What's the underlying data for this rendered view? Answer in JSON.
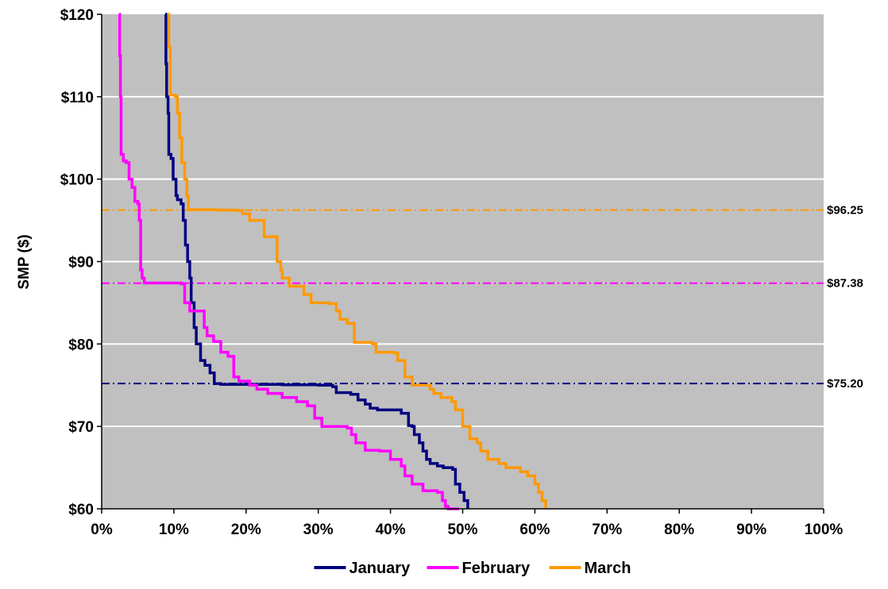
{
  "chart_data": {
    "type": "line",
    "ylabel": "SMP ($)",
    "xlabel": "",
    "xlim": [
      0,
      100
    ],
    "ylim": [
      60,
      120
    ],
    "x_ticks": [
      "0%",
      "10%",
      "20%",
      "30%",
      "40%",
      "50%",
      "60%",
      "70%",
      "80%",
      "90%",
      "100%"
    ],
    "y_ticks": [
      "$60",
      "$70",
      "$80",
      "$90",
      "$100",
      "$110",
      "$120"
    ],
    "grid": "horizontal",
    "legend_position": "bottom",
    "plot_background": "#c0c0c0",
    "series": [
      {
        "name": "January",
        "color": "#000080",
        "points": [
          [
            8.8,
            120
          ],
          [
            8.9,
            114
          ],
          [
            9.0,
            110
          ],
          [
            9.2,
            108
          ],
          [
            9.3,
            103
          ],
          [
            9.6,
            102.5
          ],
          [
            9.9,
            100
          ],
          [
            10.3,
            98
          ],
          [
            10.5,
            97.5
          ],
          [
            11.0,
            97
          ],
          [
            11.3,
            95
          ],
          [
            11.6,
            92
          ],
          [
            11.9,
            90
          ],
          [
            12.2,
            88
          ],
          [
            12.4,
            85
          ],
          [
            12.8,
            82
          ],
          [
            13.1,
            80
          ],
          [
            13.7,
            78
          ],
          [
            14.3,
            77.4
          ],
          [
            15.0,
            76.5
          ],
          [
            15.6,
            75.2
          ],
          [
            16.5,
            75.1
          ],
          [
            20,
            75.1
          ],
          [
            25,
            75.05
          ],
          [
            30,
            75.0
          ],
          [
            32,
            74.8
          ],
          [
            32.5,
            74.1
          ],
          [
            34.5,
            73.9
          ],
          [
            35.5,
            73.2
          ],
          [
            36.5,
            72.7
          ],
          [
            37.2,
            72.2
          ],
          [
            38.2,
            72.0
          ],
          [
            40.0,
            72.0
          ],
          [
            41.5,
            71.6
          ],
          [
            42.5,
            70.1
          ],
          [
            43.0,
            70.0
          ],
          [
            43.3,
            69.0
          ],
          [
            44.0,
            68.0
          ],
          [
            44.5,
            67.0
          ],
          [
            45.0,
            66.0
          ],
          [
            45.5,
            65.5
          ],
          [
            46.5,
            65.2
          ],
          [
            47.3,
            65.0
          ],
          [
            48.0,
            65.0
          ],
          [
            48.6,
            64.8
          ],
          [
            49.0,
            63.0
          ],
          [
            49.6,
            62.0
          ],
          [
            50.2,
            61.0
          ],
          [
            50.7,
            60.0
          ]
        ]
      },
      {
        "name": "February",
        "color": "#ff00ff",
        "points": [
          [
            2.4,
            120
          ],
          [
            2.5,
            115
          ],
          [
            2.6,
            110
          ],
          [
            2.7,
            103
          ],
          [
            3.0,
            102.2
          ],
          [
            3.4,
            102.0
          ],
          [
            3.8,
            100.0
          ],
          [
            4.2,
            99.0
          ],
          [
            4.6,
            97.3
          ],
          [
            5.0,
            97.0
          ],
          [
            5.2,
            95.0
          ],
          [
            5.4,
            89.0
          ],
          [
            5.6,
            88.0
          ],
          [
            5.9,
            87.4
          ],
          [
            9.0,
            87.4
          ],
          [
            11.0,
            87.3
          ],
          [
            11.5,
            85.0
          ],
          [
            12.2,
            84.0
          ],
          [
            13.5,
            84.0
          ],
          [
            14.2,
            82.0
          ],
          [
            14.6,
            81.0
          ],
          [
            15.5,
            80.3
          ],
          [
            16.5,
            79.0
          ],
          [
            17.5,
            78.5
          ],
          [
            18.3,
            76.0
          ],
          [
            19.0,
            75.5
          ],
          [
            20.5,
            75.0
          ],
          [
            21.5,
            74.5
          ],
          [
            23.0,
            74.0
          ],
          [
            25.0,
            73.5
          ],
          [
            27.0,
            73.0
          ],
          [
            28.5,
            72.5
          ],
          [
            29.5,
            71.0
          ],
          [
            30.5,
            70.0
          ],
          [
            34.0,
            69.8
          ],
          [
            34.6,
            69.0
          ],
          [
            35.2,
            68.0
          ],
          [
            36.5,
            67.1
          ],
          [
            38.5,
            67.0
          ],
          [
            40.0,
            66.0
          ],
          [
            41.5,
            65.2
          ],
          [
            42.0,
            64.0
          ],
          [
            43.0,
            63.0
          ],
          [
            44.5,
            62.2
          ],
          [
            46.5,
            62.0
          ],
          [
            47.2,
            61.0
          ],
          [
            47.6,
            60.3
          ],
          [
            48.0,
            60.0
          ],
          [
            49.5,
            60.0
          ]
        ]
      },
      {
        "name": "March",
        "color": "#ff9900",
        "points": [
          [
            9.2,
            120
          ],
          [
            9.3,
            116
          ],
          [
            9.5,
            110.2
          ],
          [
            10.2,
            110.0
          ],
          [
            10.5,
            108.0
          ],
          [
            10.8,
            105.0
          ],
          [
            11.1,
            102.0
          ],
          [
            11.5,
            100.0
          ],
          [
            11.8,
            98.0
          ],
          [
            12.0,
            96.3
          ],
          [
            16.0,
            96.25
          ],
          [
            18.5,
            96.2
          ],
          [
            19.5,
            95.8
          ],
          [
            20.5,
            95.0
          ],
          [
            22.0,
            95.0
          ],
          [
            22.5,
            93.0
          ],
          [
            24.0,
            93.0
          ],
          [
            24.3,
            90.0
          ],
          [
            24.8,
            89.0
          ],
          [
            25.0,
            88.0
          ],
          [
            26.0,
            87.0
          ],
          [
            27.5,
            87.0
          ],
          [
            28.0,
            86.0
          ],
          [
            29.0,
            85.0
          ],
          [
            31.5,
            84.9
          ],
          [
            32.5,
            84.0
          ],
          [
            33.0,
            83.0
          ],
          [
            34.0,
            82.5
          ],
          [
            35.0,
            80.2
          ],
          [
            37.5,
            80.0
          ],
          [
            38.0,
            79.0
          ],
          [
            40.5,
            78.9
          ],
          [
            41.0,
            78.0
          ],
          [
            42.0,
            76.0
          ],
          [
            43.0,
            75.0
          ],
          [
            45.5,
            74.5
          ],
          [
            46.0,
            74.0
          ],
          [
            47.0,
            73.5
          ],
          [
            48.5,
            73.0
          ],
          [
            49.0,
            72.0
          ],
          [
            50.0,
            70.0
          ],
          [
            50.5,
            70.0
          ],
          [
            51.0,
            68.5
          ],
          [
            52.0,
            68.0
          ],
          [
            52.5,
            67.0
          ],
          [
            53.5,
            66.0
          ],
          [
            55.0,
            65.5
          ],
          [
            56.0,
            65.0
          ],
          [
            58.0,
            64.5
          ],
          [
            59.0,
            64.0
          ],
          [
            60.0,
            63.0
          ],
          [
            60.5,
            62.0
          ],
          [
            61.0,
            61.0
          ],
          [
            61.5,
            60.0
          ]
        ]
      }
    ],
    "reference_lines": [
      {
        "value": 96.25,
        "label": "$96.25",
        "color": "#ff9900"
      },
      {
        "value": 87.38,
        "label": "$87.38",
        "color": "#ff00ff"
      },
      {
        "value": 75.2,
        "label": "$75.20",
        "color": "#000080"
      }
    ]
  }
}
